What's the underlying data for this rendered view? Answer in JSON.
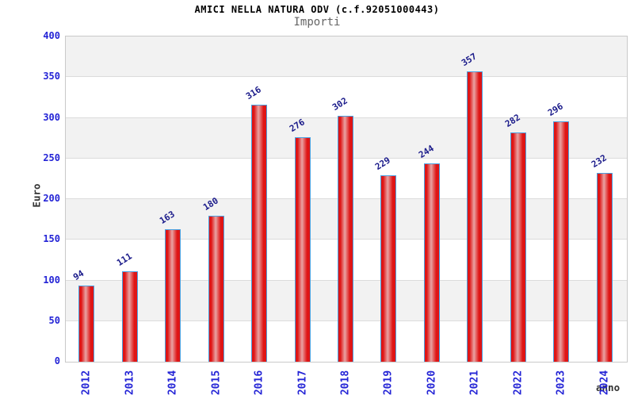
{
  "chart_data": {
    "type": "bar",
    "title": "AMICI NELLA NATURA ODV (c.f.92051000443)",
    "subtitle": "Importi",
    "xlabel": "anno",
    "ylabel": "Euro",
    "categories": [
      "2012",
      "2013",
      "2014",
      "2015",
      "2016",
      "2017",
      "2018",
      "2019",
      "2020",
      "2021",
      "2022",
      "2023",
      "2024"
    ],
    "values": [
      94,
      111,
      163,
      180,
      316,
      276,
      302,
      229,
      244,
      357,
      282,
      296,
      232
    ],
    "bar_labels": [
      "94",
      "111",
      "163",
      "180",
      "316",
      "276",
      "302",
      "229",
      "244",
      "357",
      "282",
      "296",
      "232"
    ],
    "ylim": [
      0,
      400
    ],
    "yticks": [
      0,
      50,
      100,
      150,
      200,
      250,
      300,
      350,
      400
    ],
    "grid": "horizontal lines every 50 with alternating shaded bands",
    "legend": "none"
  },
  "colors": {
    "title_text": "#000000",
    "subtitle_text": "#666666",
    "tick_label": "#2424d6",
    "value_label": "#1a1a8a",
    "axis_title": "#333333",
    "bar_fill_edge": "#df1515",
    "bar_fill_center": "#e9a3a3",
    "bar_border": "#4aa0e0",
    "band_shade": "#f2f2f2",
    "gridline": "#dcdcdc",
    "plot_border": "#c9c9c9"
  }
}
